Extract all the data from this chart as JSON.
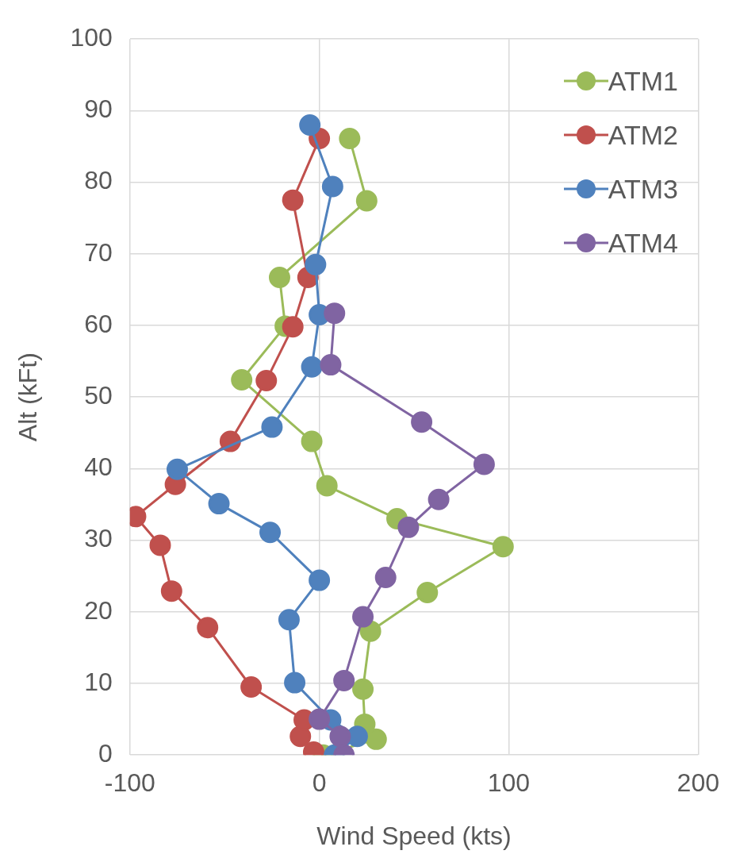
{
  "chart_data": {
    "type": "line",
    "xlabel": "Wind Speed (kts)",
    "ylabel": "Alt (kFt)",
    "xlim": [
      -100,
      200
    ],
    "xticks": [
      -100,
      0,
      100,
      200
    ],
    "ylim": [
      0,
      100
    ],
    "yticks": [
      0,
      10,
      20,
      30,
      40,
      50,
      60,
      70,
      80,
      90,
      100
    ],
    "grid": true,
    "legend": "top right",
    "marker": "circle",
    "line_style": "solid",
    "series": [
      {
        "name": "ATM1",
        "color": "#9bbb59",
        "x": [
          2,
          30,
          24,
          23,
          27,
          57,
          97,
          41,
          4,
          -4,
          -41,
          -18,
          -21,
          25,
          16
        ],
        "values": [
          0,
          2.2,
          4.3,
          9.2,
          17.3,
          22.7,
          29.1,
          33,
          37.6,
          43.8,
          52.4,
          59.9,
          66.7,
          77.4,
          86.1
        ]
      },
      {
        "name": "ATM2",
        "color": "#c0504d",
        "x": [
          -3,
          -10,
          -8,
          -36,
          -59,
          -78,
          -84,
          -97,
          -76,
          -47,
          -28,
          -14,
          -6,
          -14,
          0
        ],
        "values": [
          0.4,
          2.6,
          4.9,
          9.5,
          17.8,
          22.9,
          29.3,
          33.3,
          37.8,
          43.8,
          52.3,
          59.8,
          66.7,
          77.5,
          86.1
        ]
      },
      {
        "name": "ATM3",
        "color": "#4f81bd",
        "x": [
          8,
          20,
          6,
          -13,
          -16,
          0,
          -26,
          -53,
          -75,
          -25,
          -4,
          0,
          -2,
          7,
          -5
        ],
        "values": [
          0,
          2.6,
          4.9,
          10.1,
          18.9,
          24.4,
          31.1,
          35.1,
          39.9,
          45.8,
          54.2,
          61.5,
          68.5,
          79.4,
          88
        ]
      },
      {
        "name": "ATM4",
        "color": "#8064a2",
        "x": [
          13,
          11,
          0,
          13,
          23,
          35,
          47,
          63,
          87,
          54,
          6,
          8
        ],
        "values": [
          0,
          2.6,
          5,
          10.4,
          19.3,
          24.8,
          31.8,
          35.7,
          40.6,
          46.5,
          54.5,
          61.7
        ]
      }
    ]
  }
}
